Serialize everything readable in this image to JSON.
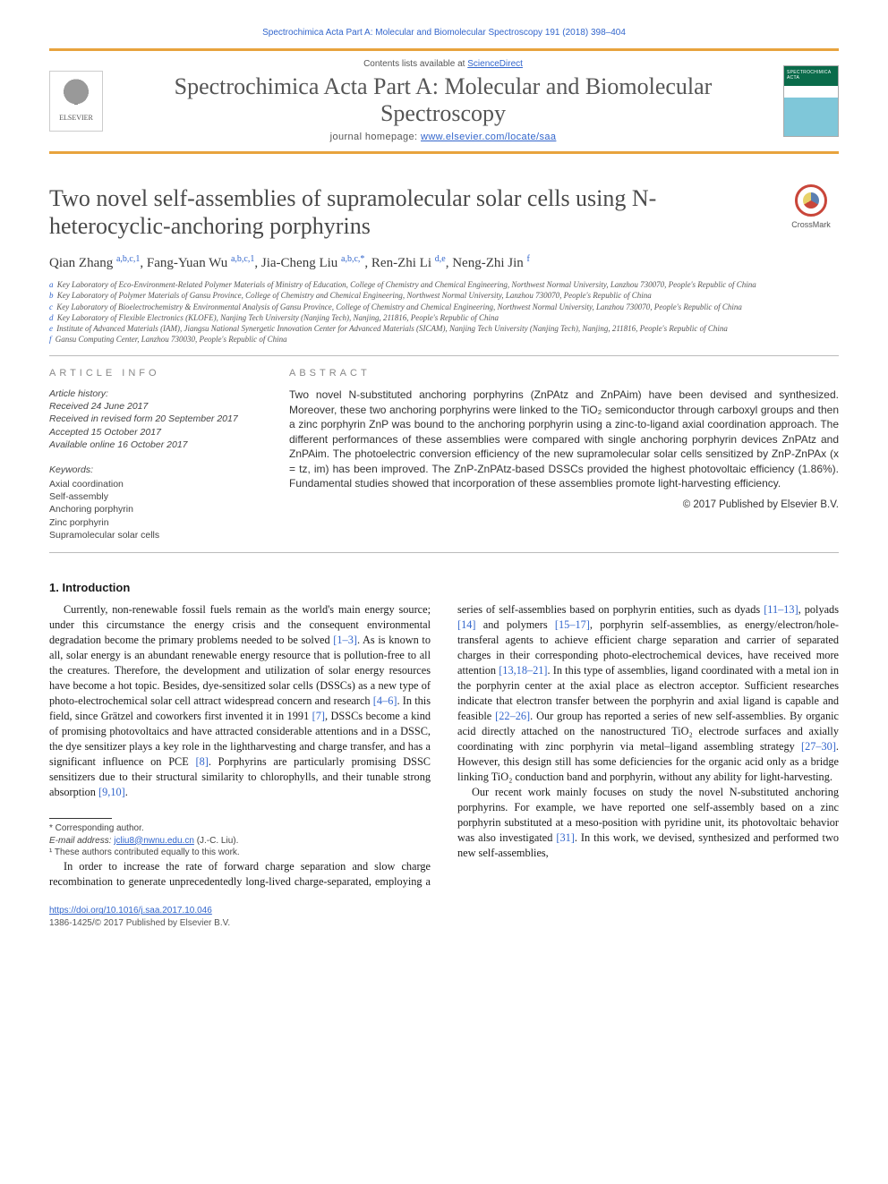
{
  "running_head": "Spectrochimica Acta Part A: Molecular and Biomolecular Spectroscopy 191 (2018) 398–404",
  "header": {
    "contents_prefix": "Contents lists available at ",
    "contents_link": "ScienceDirect",
    "journal_title": "Spectrochimica Acta Part A: Molecular and Biomolecular Spectroscopy",
    "homepage_prefix": "journal homepage: ",
    "homepage_link": "www.elsevier.com/locate/saa",
    "publisher_logo_label": "ELSEVIER",
    "cover_label": "SPECTROCHIMICA ACTA"
  },
  "article": {
    "title": "Two novel self-assemblies of supramolecular solar cells using N-heterocyclic-anchoring porphyrins",
    "crossmark_label": "CrossMark",
    "authors_html": "Qian Zhang <sup class='aff'>a,b,c,1</sup>, Fang-Yuan Wu <sup class='aff'>a,b,c,1</sup>, Jia-Cheng Liu <sup class='aff'>a,b,c,*</sup>, Ren-Zhi Li <sup class='aff'>d,e</sup>, Neng-Zhi Jin <sup class='aff'>f</sup>",
    "affiliations": [
      {
        "lbl": "a",
        "text": "Key Laboratory of Eco-Environment-Related Polymer Materials of Ministry of Education, College of Chemistry and Chemical Engineering, Northwest Normal University, Lanzhou 730070, People's Republic of China"
      },
      {
        "lbl": "b",
        "text": "Key Laboratory of Polymer Materials of Gansu Province, College of Chemistry and Chemical Engineering, Northwest Normal University, Lanzhou 730070, People's Republic of China"
      },
      {
        "lbl": "c",
        "text": "Key Laboratory of Bioelectrochemistry & Environmental Analysis of Gansu Province, College of Chemistry and Chemical Engineering, Northwest Normal University, Lanzhou 730070, People's Republic of China"
      },
      {
        "lbl": "d",
        "text": "Key Laboratory of Flexible Electronics (KLOFE), Nanjing Tech University (Nanjing Tech), Nanjing, 211816, People's Republic of China"
      },
      {
        "lbl": "e",
        "text": "Institute of Advanced Materials (IAM), Jiangsu National Synergetic Innovation Center for Advanced Materials (SICAM), Nanjing Tech University (Nanjing Tech), Nanjing, 211816, People's Republic of China"
      },
      {
        "lbl": "f",
        "text": "Gansu Computing Center, Lanzhou 730030, People's Republic of China"
      }
    ]
  },
  "info": {
    "article_info_head": "article info",
    "abstract_head": "abstract",
    "history_label": "Article history:",
    "history": [
      "Received 24 June 2017",
      "Received in revised form 20 September 2017",
      "Accepted 15 October 2017",
      "Available online 16 October 2017"
    ],
    "keywords_label": "Keywords:",
    "keywords": [
      "Axial coordination",
      "Self-assembly",
      "Anchoring porphyrin",
      "Zinc porphyrin",
      "Supramolecular solar cells"
    ],
    "abstract": "Two novel N-substituted anchoring porphyrins (ZnPAtz and ZnPAim) have been devised and synthesized. Moreover, these two anchoring porphyrins were linked to the TiO₂ semiconductor through carboxyl groups and then a zinc porphyrin ZnP was bound to the anchoring porphyrin using a zinc-to-ligand axial coordination approach. The different performances of these assemblies were compared with single anchoring porphyrin devices ZnPAtz and ZnPAim. The photoelectric conversion efficiency of the new supramolecular solar cells sensitized by ZnP-ZnPAx (x = tz, im) has been improved. The ZnP-ZnPAtz-based DSSCs provided the highest photovoltaic efficiency (1.86%). Fundamental studies showed that incorporation of these assemblies promote light-harvesting efficiency.",
    "copyright": "© 2017 Published by Elsevier B.V."
  },
  "sections": {
    "intro_title": "1. Introduction",
    "intro_p1": "Currently, non-renewable fossil fuels remain as the world's main energy source; under this circumstance the energy crisis and the consequent environmental degradation become the primary problems needed to be solved [1–3]. As is known to all, solar energy is an abundant renewable energy resource that is pollution-free to all the creatures. Therefore, the development and utilization of solar energy resources have become a hot topic. Besides, dye-sensitized solar cells (DSSCs) as a new type of photo-electrochemical solar cell attract widespread concern and research [4–6]. In this field, since Grätzel and coworkers first invented it in 1991 [7], DSSCs become a kind of promising photovoltaics and have attracted considerable attentions and in a DSSC, the dye sensitizer plays a key role in the lightharvesting and charge transfer, and has a significant influence on PCE [8]. Porphyrins are particularly promising DSSC sensitizers due to their structural similarity to chlorophylls, and their tunable strong absorption [9,10].",
    "intro_p2": "In order to increase the rate of forward charge separation and slow charge recombination to generate unprecedentedly long-lived charge-separated, employing a series of self-assemblies based on porphyrin entities, such as dyads [11–13], polyads [14] and polymers [15–17], porphyrin self-assemblies, as energy/electron/hole-transferal agents to achieve efficient charge separation and carrier of separated charges in their corresponding photo-electrochemical devices, have received more attention [13,18–21]. In this type of assemblies, ligand coordinated with a metal ion in the porphyrin center at the axial place as electron acceptor. Sufficient researches indicate that electron transfer between the porphyrin and axial ligand is capable and feasible [22–26]. Our group has reported a series of new self-assemblies. By organic acid directly attached on the nanostructured TiO₂ electrode surfaces and axially coordinating with zinc porphyrin via metal–ligand assembling strategy [27–30]. However, this design still has some deficiencies for the organic acid only as a bridge linking TiO₂ conduction band and porphyrin, without any ability for light-harvesting.",
    "intro_p3": "Our recent work mainly focuses on study the novel N-substituted anchoring porphyrins. For example, we have reported one self-assembly based on a zinc porphyrin substituted at a meso-position with pyridine unit, its photovoltaic behavior was also investigated [31]. In this work, we devised, synthesized and performed two new self-assemblies,"
  },
  "footnotes": {
    "corr_label": "* Corresponding author.",
    "email_label": "E-mail address:",
    "email": "jcliu8@nwnu.edu.cn",
    "email_suffix": "(J.-C. Liu).",
    "eq_contrib": "¹ These authors contributed equally to this work."
  },
  "bottom": {
    "doi": "https://doi.org/10.1016/j.saa.2017.10.046",
    "issn_line": "1386-1425/© 2017 Published by Elsevier B.V."
  },
  "refs_in_body": {
    "r1": "[1–3]",
    "r4": "[4–6]",
    "r7": "[7]",
    "r8": "[8]",
    "r9": "[9,10]",
    "r11": "[11–13]",
    "r14": "[14]",
    "r15": "[15–17]",
    "r18": "[13,18–21]",
    "r22": "[22–26]",
    "r27": "[27–30]",
    "r31": "[31]"
  },
  "colors": {
    "accent_orange": "#e8a33d",
    "link_blue": "#3366cc",
    "heading_gray": "#4a4a4a",
    "body_text": "#1a1a1a"
  },
  "typography": {
    "journal_title_pt": 26,
    "article_title_pt": 26,
    "authors_pt": 15,
    "body_pt": 12.3,
    "abstract_pt": 12,
    "affiliations_pt": 9,
    "footnote_pt": 10
  }
}
